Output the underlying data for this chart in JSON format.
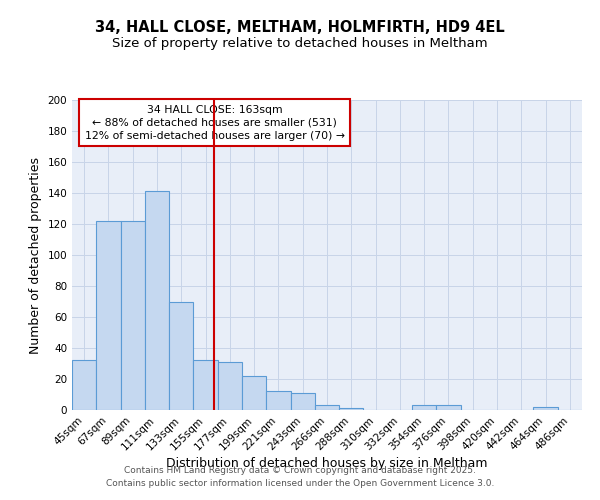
{
  "title1": "34, HALL CLOSE, MELTHAM, HOLMFIRTH, HD9 4EL",
  "title2": "Size of property relative to detached houses in Meltham",
  "xlabel": "Distribution of detached houses by size in Meltham",
  "ylabel": "Number of detached properties",
  "categories": [
    "45sqm",
    "67sqm",
    "89sqm",
    "111sqm",
    "133sqm",
    "155sqm",
    "177sqm",
    "199sqm",
    "221sqm",
    "243sqm",
    "266sqm",
    "288sqm",
    "310sqm",
    "332sqm",
    "354sqm",
    "376sqm",
    "398sqm",
    "420sqm",
    "442sqm",
    "464sqm",
    "486sqm"
  ],
  "values": [
    32,
    122,
    122,
    141,
    70,
    32,
    31,
    22,
    12,
    11,
    3,
    1,
    0,
    0,
    3,
    3,
    0,
    0,
    0,
    2,
    0
  ],
  "bar_color": "#c5d8f0",
  "bar_edge_color": "#5b9bd5",
  "property_line_color": "#cc0000",
  "annotation_text": "34 HALL CLOSE: 163sqm\n← 88% of detached houses are smaller (531)\n12% of semi-detached houses are larger (70) →",
  "annotation_box_edgecolor": "#cc0000",
  "annotation_bg": "white",
  "ylim": [
    0,
    200
  ],
  "yticks": [
    0,
    20,
    40,
    60,
    80,
    100,
    120,
    140,
    160,
    180,
    200
  ],
  "grid_color": "#c8d4e8",
  "bg_color": "#e8eef8",
  "footer": "Contains HM Land Registry data © Crown copyright and database right 2025.\nContains public sector information licensed under the Open Government Licence 3.0.",
  "title_fontsize": 10.5,
  "subtitle_fontsize": 9.5,
  "tick_fontsize": 7.5,
  "ylabel_fontsize": 9,
  "xlabel_fontsize": 9,
  "footer_fontsize": 6.5
}
